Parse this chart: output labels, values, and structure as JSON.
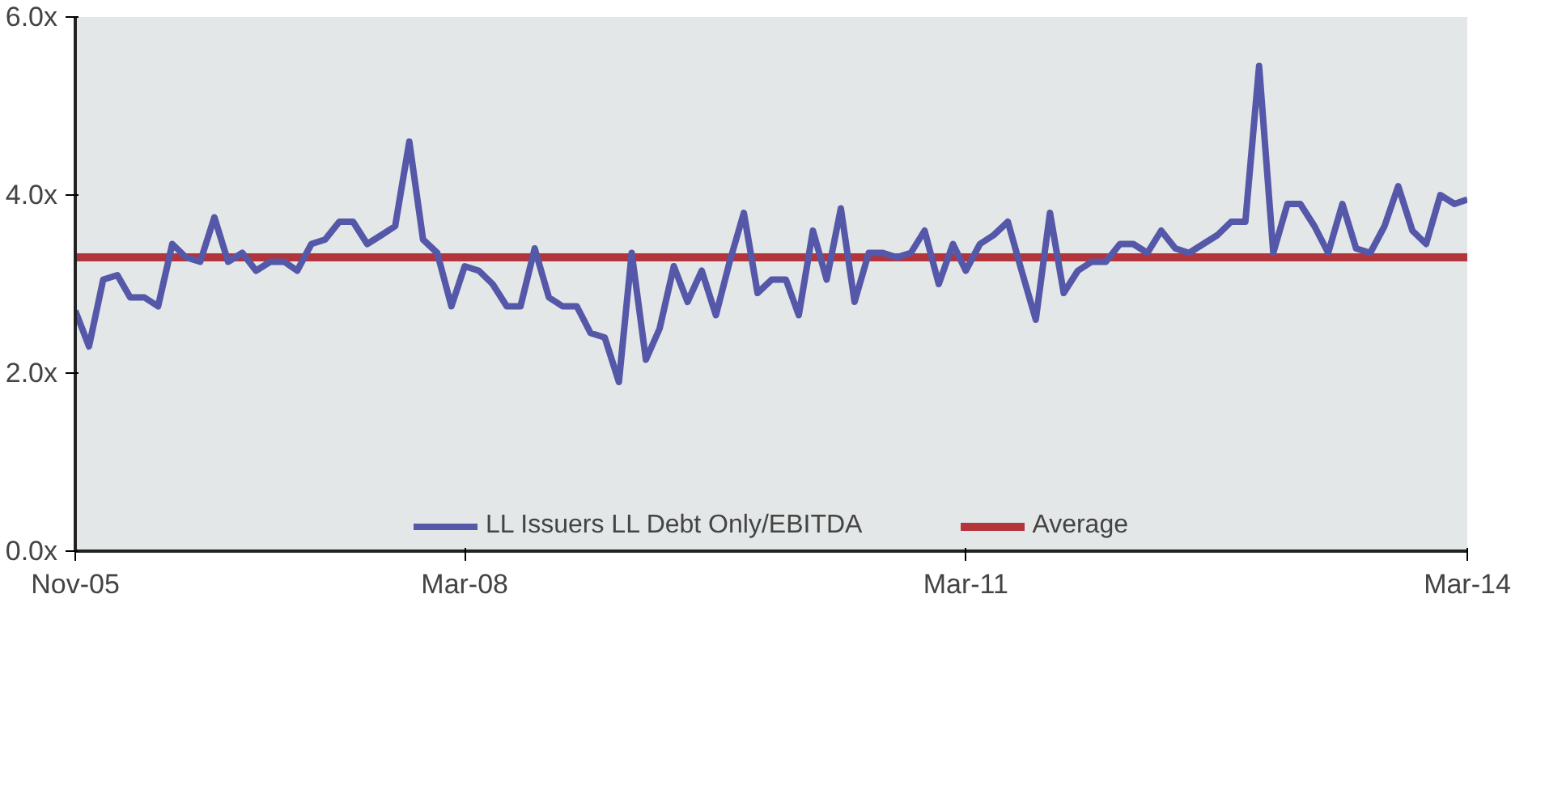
{
  "chart_data": {
    "type": "line",
    "x": [
      "2005-11",
      "2005-12",
      "2006-01",
      "2006-02",
      "2006-03",
      "2006-04",
      "2006-05",
      "2006-06",
      "2006-07",
      "2006-08",
      "2006-09",
      "2006-10",
      "2006-11",
      "2006-12",
      "2007-01",
      "2007-02",
      "2007-03",
      "2007-04",
      "2007-05",
      "2007-06",
      "2007-07",
      "2007-08",
      "2007-09",
      "2007-10",
      "2007-11",
      "2007-12",
      "2008-01",
      "2008-02",
      "2008-03",
      "2008-04",
      "2008-05",
      "2008-06",
      "2008-07",
      "2008-08",
      "2008-09",
      "2008-10",
      "2008-11",
      "2008-12",
      "2009-01",
      "2009-02",
      "2009-03",
      "2009-04",
      "2009-05",
      "2009-06",
      "2009-07",
      "2009-08",
      "2009-09",
      "2009-10",
      "2009-11",
      "2009-12",
      "2010-01",
      "2010-02",
      "2010-03",
      "2010-04",
      "2010-05",
      "2010-06",
      "2010-07",
      "2010-08",
      "2010-09",
      "2010-10",
      "2010-11",
      "2010-12",
      "2011-01",
      "2011-02",
      "2011-03",
      "2011-04",
      "2011-05",
      "2011-06",
      "2011-07",
      "2011-08",
      "2011-09",
      "2011-10",
      "2011-11",
      "2011-12",
      "2012-01",
      "2012-02",
      "2012-03",
      "2012-04",
      "2012-05",
      "2012-06",
      "2012-07",
      "2012-08",
      "2012-09",
      "2012-10",
      "2012-11",
      "2012-12",
      "2013-01",
      "2013-02",
      "2013-03",
      "2013-04",
      "2013-05",
      "2013-06",
      "2013-07",
      "2013-08",
      "2013-09",
      "2013-10",
      "2013-11",
      "2013-12",
      "2014-01",
      "2014-02",
      "2014-03"
    ],
    "series": [
      {
        "name": "LL Issuers LL Debt Only/EBITDA",
        "color": "#5558a8",
        "values": [
          2.7,
          2.3,
          3.05,
          3.1,
          2.85,
          2.85,
          2.75,
          3.45,
          3.3,
          3.25,
          3.75,
          3.25,
          3.35,
          3.15,
          3.25,
          3.25,
          3.15,
          3.45,
          3.5,
          3.7,
          3.7,
          3.45,
          3.55,
          3.65,
          4.6,
          3.5,
          3.35,
          2.75,
          3.2,
          3.15,
          3.0,
          2.75,
          2.75,
          3.4,
          2.85,
          2.75,
          2.75,
          2.45,
          2.4,
          1.9,
          3.35,
          2.15,
          2.5,
          3.2,
          2.8,
          3.15,
          2.65,
          3.25,
          3.8,
          2.9,
          3.05,
          3.05,
          2.65,
          3.6,
          3.05,
          3.85,
          2.8,
          3.35,
          3.35,
          3.3,
          3.35,
          3.6,
          3.0,
          3.45,
          3.15,
          3.45,
          3.55,
          3.7,
          3.15,
          2.6,
          3.8,
          2.9,
          3.15,
          3.25,
          3.25,
          3.45,
          3.45,
          3.35,
          3.6,
          3.4,
          3.35,
          3.45,
          3.55,
          3.7,
          3.7,
          5.45,
          3.35,
          3.9,
          3.9,
          3.65,
          3.35,
          3.9,
          3.4,
          3.35,
          3.65,
          4.1,
          3.6,
          3.45,
          4.0,
          3.9,
          3.95
        ]
      }
    ],
    "ref_lines": [
      {
        "axis": "y",
        "value": 3.3,
        "label": "Average",
        "color": "#b3353b"
      }
    ],
    "ylim": [
      0,
      6
    ],
    "yticks": [
      {
        "value": 0,
        "label": "0.0x"
      },
      {
        "value": 2,
        "label": "2.0x"
      },
      {
        "value": 4,
        "label": "4.0x"
      },
      {
        "value": 6,
        "label": "6.0x"
      }
    ],
    "xlim": [
      "2005-11",
      "2014-03"
    ],
    "xticks": [
      {
        "value": "2005-11",
        "label": "Nov-05"
      },
      {
        "value": "2008-03",
        "label": "Mar-08"
      },
      {
        "value": "2011-03",
        "label": "Mar-11"
      },
      {
        "value": "2014-03",
        "label": "Mar-14"
      }
    ],
    "grid": false,
    "legend": "bottom"
  }
}
